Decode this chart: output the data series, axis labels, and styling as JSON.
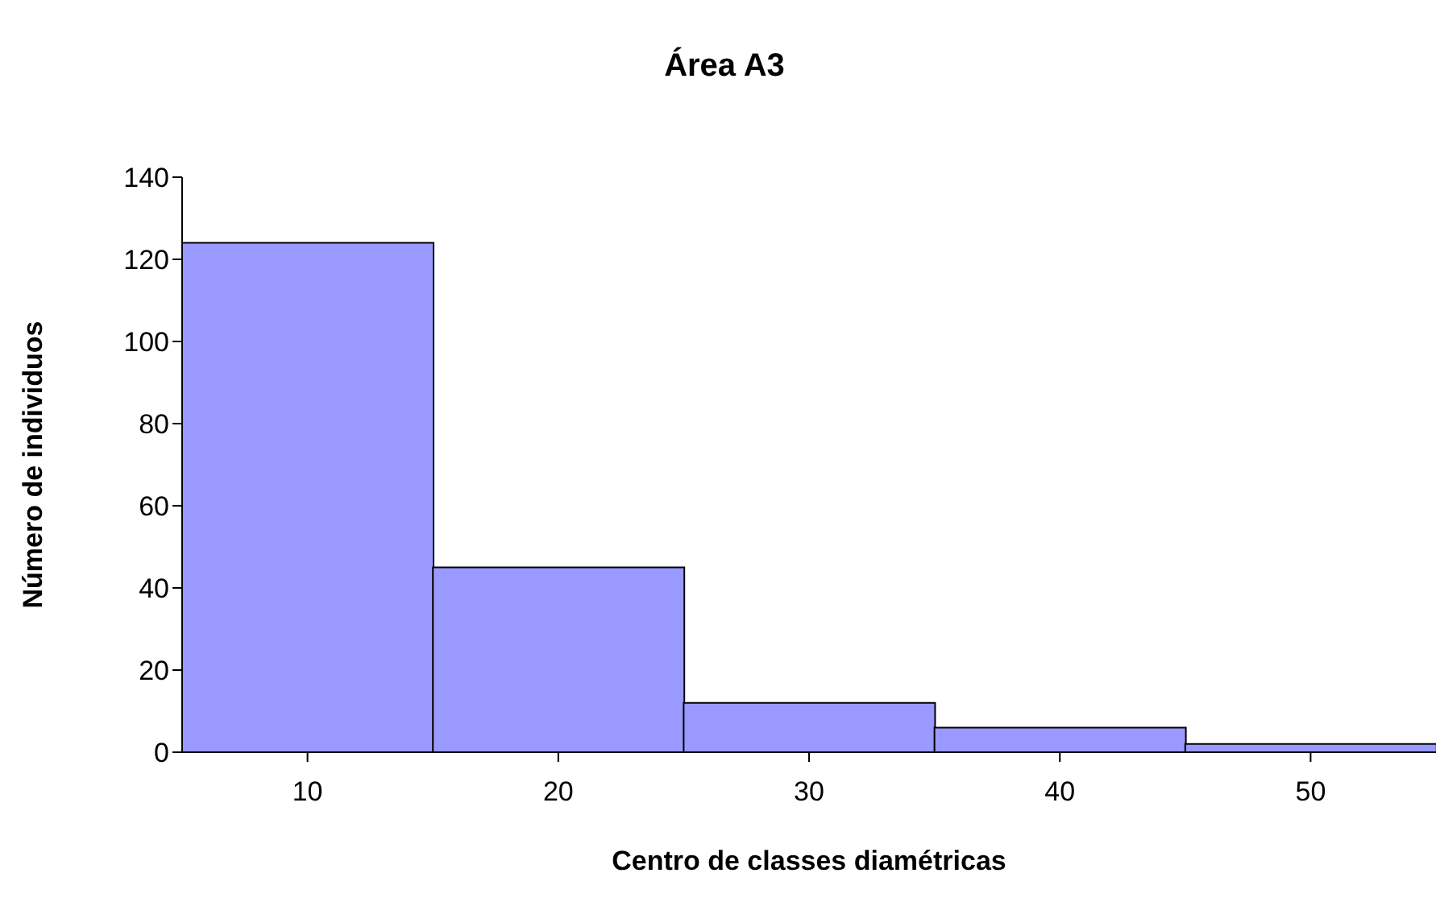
{
  "chart_data": {
    "type": "bar",
    "title": "Área A3",
    "xlabel": "Centro de classes diamétricas",
    "ylabel": "Número de individuos",
    "categories": [
      "10",
      "20",
      "30",
      "40",
      "50"
    ],
    "values": [
      124,
      45,
      12,
      6,
      2
    ],
    "color": "#9999ff",
    "ylim": [
      0,
      140
    ],
    "yticks": [
      0,
      20,
      40,
      60,
      80,
      100,
      120,
      140
    ],
    "grid": false
  }
}
